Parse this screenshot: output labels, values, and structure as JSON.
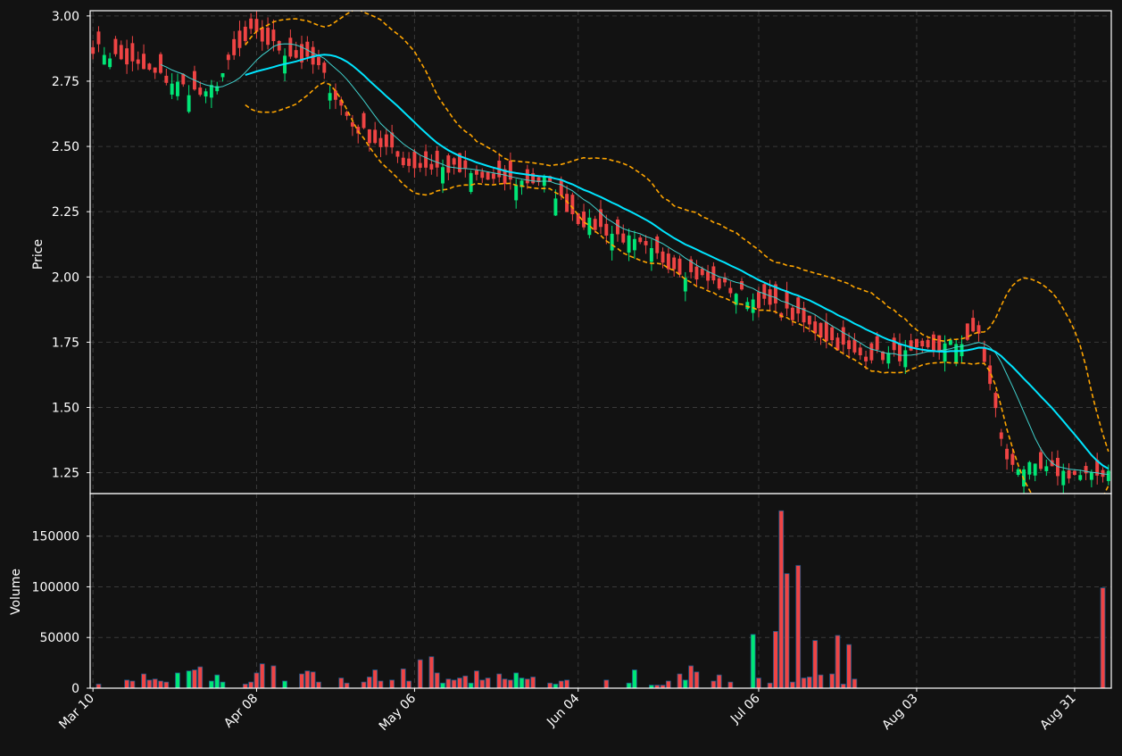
{
  "colors": {
    "background": "#121212",
    "frame": "#ffffff",
    "grid": "#3a3a3a",
    "text": "#ffffff",
    "up": "#00e676",
    "down": "#ef4444",
    "volume_edge": "#1f5a8a",
    "sma_fast": "#40d0cc",
    "sma_slow": "#00e5ff",
    "bollinger": "#ffa500"
  },
  "chart_data": [
    {
      "type": "candlestick",
      "ylabel": "Price",
      "ylim": [
        1.17,
        3.02
      ],
      "yticks": [
        1.25,
        1.5,
        1.75,
        2.0,
        2.25,
        2.5,
        2.75,
        3.0
      ],
      "ytick_labels": [
        "1.25",
        "1.50",
        "1.75",
        "2.00",
        "2.25",
        "2.50",
        "2.75",
        "3.00"
      ],
      "x_start": "2024-03-10",
      "xlim": [
        -0.5,
        180.5
      ],
      "xticks": [
        0,
        29,
        57,
        86,
        118,
        146,
        174
      ],
      "xtick_labels": [
        "Mar 10",
        "Apr 08",
        "May 06",
        "Jun 04",
        "Jul 06",
        "Aug 03",
        "Aug 31"
      ],
      "grid": true,
      "series": [],
      "anchors_x": [
        0,
        20,
        28,
        40,
        46,
        56,
        64,
        72,
        80,
        86,
        94,
        104,
        112,
        124,
        135,
        145,
        152,
        157,
        162,
        167,
        172,
        177,
        180
      ],
      "anchors_y": [
        2.88,
        2.69,
        2.93,
        2.8,
        2.58,
        2.43,
        2.41,
        2.36,
        2.37,
        2.22,
        2.15,
        2.03,
        1.96,
        1.85,
        1.7,
        1.7,
        1.74,
        1.78,
        1.29,
        1.26,
        1.25,
        1.23,
        1.26
      ],
      "sma20_start_index": 27,
      "sma10_start_index": 12,
      "bollinger_start_index": 27,
      "up_indices": [
        2,
        3,
        14,
        15,
        17,
        20,
        21,
        22,
        23,
        34,
        42,
        62,
        67,
        75,
        76,
        80,
        82,
        88,
        92,
        95,
        96,
        99,
        105,
        114,
        116,
        117,
        141,
        144,
        151,
        152,
        153,
        154,
        164,
        165,
        166,
        167,
        169,
        172,
        175,
        177,
        180
      ]
    },
    {
      "type": "bar",
      "ylabel": "Volume",
      "ylim": [
        0,
        192000
      ],
      "yticks": [
        0,
        50000,
        100000,
        150000
      ],
      "ytick_labels": [
        "0",
        "50000",
        "100000",
        "150000"
      ],
      "grid": true,
      "spikes": [
        [
          1,
          4000
        ],
        [
          6,
          8000
        ],
        [
          7,
          7000
        ],
        [
          9,
          14000
        ],
        [
          10,
          8000
        ],
        [
          11,
          9000
        ],
        [
          12,
          7000
        ],
        [
          13,
          6000
        ],
        [
          15,
          15000
        ],
        [
          17,
          17000
        ],
        [
          18,
          18000
        ],
        [
          19,
          21000
        ],
        [
          21,
          7000
        ],
        [
          22,
          13000
        ],
        [
          23,
          6000
        ],
        [
          27,
          4000
        ],
        [
          28,
          6000
        ],
        [
          29,
          15000
        ],
        [
          30,
          24000
        ],
        [
          32,
          22000
        ],
        [
          34,
          7000
        ],
        [
          37,
          14000
        ],
        [
          38,
          17000
        ],
        [
          39,
          16000
        ],
        [
          40,
          6000
        ],
        [
          44,
          10000
        ],
        [
          45,
          5000
        ],
        [
          48,
          6000
        ],
        [
          49,
          11000
        ],
        [
          50,
          18000
        ],
        [
          51,
          7000
        ],
        [
          53,
          8000
        ],
        [
          55,
          19000
        ],
        [
          56,
          7000
        ],
        [
          58,
          28000
        ],
        [
          60,
          31000
        ],
        [
          61,
          15000
        ],
        [
          62,
          5000
        ],
        [
          63,
          9000
        ],
        [
          64,
          8000
        ],
        [
          65,
          10000
        ],
        [
          66,
          12000
        ],
        [
          67,
          5000
        ],
        [
          68,
          17000
        ],
        [
          69,
          8000
        ],
        [
          70,
          10000
        ],
        [
          72,
          14000
        ],
        [
          73,
          9000
        ],
        [
          74,
          8000
        ],
        [
          75,
          15000
        ],
        [
          76,
          10000
        ],
        [
          77,
          9000
        ],
        [
          78,
          11000
        ],
        [
          81,
          5000
        ],
        [
          82,
          4000
        ],
        [
          83,
          7000
        ],
        [
          84,
          8000
        ],
        [
          91,
          8000
        ],
        [
          95,
          5000
        ],
        [
          96,
          18000
        ],
        [
          99,
          3000
        ],
        [
          100,
          3000
        ],
        [
          101,
          3000
        ],
        [
          102,
          7000
        ],
        [
          104,
          14000
        ],
        [
          105,
          8000
        ],
        [
          106,
          22000
        ],
        [
          107,
          16000
        ],
        [
          110,
          7000
        ],
        [
          111,
          13000
        ],
        [
          113,
          6000
        ],
        [
          117,
          53000
        ],
        [
          118,
          10000
        ],
        [
          120,
          5000
        ],
        [
          121,
          56000
        ],
        [
          122,
          175000
        ],
        [
          123,
          113000
        ],
        [
          124,
          6000
        ],
        [
          125,
          121000
        ],
        [
          126,
          10000
        ],
        [
          127,
          11000
        ],
        [
          128,
          47000
        ],
        [
          129,
          13000
        ],
        [
          131,
          14000
        ],
        [
          132,
          52000
        ],
        [
          133,
          4000
        ],
        [
          134,
          43000
        ],
        [
          135,
          9000
        ],
        [
          179,
          99000
        ]
      ]
    }
  ]
}
